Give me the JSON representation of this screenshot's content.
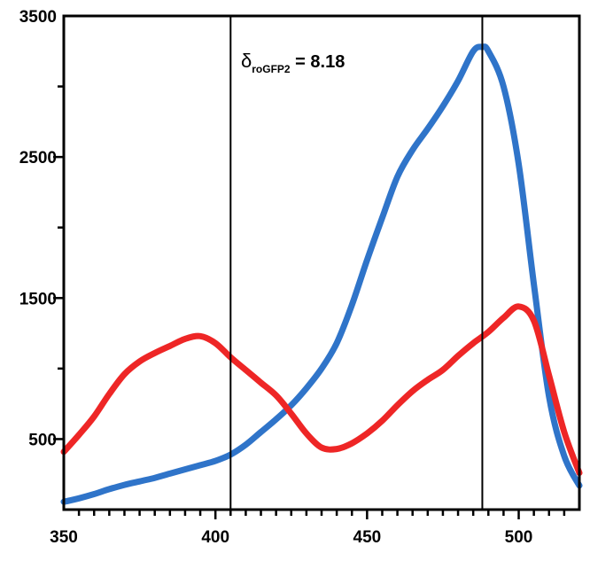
{
  "chart_data": {
    "type": "line",
    "title": "",
    "xlabel": "",
    "ylabel": "",
    "xlim": [
      350,
      520
    ],
    "ylim": [
      0,
      3500
    ],
    "x_ticks": [
      "350",
      "400",
      "450",
      "500"
    ],
    "x_tick_values": [
      350,
      400,
      450,
      500
    ],
    "x_minor_step": 5,
    "y_ticks": [
      "500",
      "1500",
      "2500",
      "3500"
    ],
    "y_tick_values": [
      500,
      1500,
      2500,
      3500
    ],
    "y_minor_step": 500,
    "grid": false,
    "legend": "none",
    "vertical_lines": [
      405,
      488
    ],
    "annotation": {
      "symbol": "δ",
      "subscript": "roGFP2",
      "text": " = 8.18"
    },
    "series": [
      {
        "color": "#2f74c9",
        "x": [
          350,
          355,
          360,
          365,
          370,
          375,
          380,
          385,
          390,
          395,
          400,
          405,
          410,
          415,
          420,
          425,
          430,
          435,
          440,
          445,
          450,
          455,
          460,
          465,
          470,
          475,
          480,
          485,
          488,
          490,
          495,
          500,
          505,
          510,
          515,
          520
        ],
        "y": [
          55,
          80,
          110,
          145,
          175,
          200,
          225,
          255,
          285,
          315,
          345,
          390,
          460,
          550,
          640,
          740,
          860,
          1000,
          1180,
          1450,
          1770,
          2070,
          2360,
          2550,
          2700,
          2860,
          3040,
          3250,
          3280,
          3250,
          3000,
          2450,
          1600,
          800,
          380,
          170
        ]
      },
      {
        "color": "#ee2626",
        "x": [
          350,
          355,
          360,
          365,
          370,
          375,
          380,
          385,
          390,
          395,
          400,
          405,
          410,
          415,
          420,
          425,
          430,
          435,
          440,
          445,
          450,
          455,
          460,
          465,
          470,
          475,
          480,
          485,
          490,
          495,
          500,
          505,
          510,
          515,
          520
        ],
        "y": [
          410,
          530,
          660,
          820,
          960,
          1050,
          1110,
          1160,
          1210,
          1230,
          1180,
          1080,
          990,
          900,
          810,
          680,
          540,
          440,
          430,
          470,
          540,
          630,
          740,
          840,
          920,
          990,
          1090,
          1180,
          1260,
          1360,
          1440,
          1340,
          950,
          550,
          260
        ]
      }
    ]
  }
}
